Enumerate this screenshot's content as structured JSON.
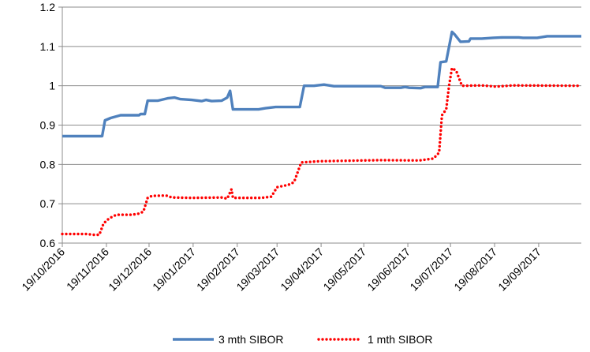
{
  "chart_data": {
    "type": "line",
    "title": "",
    "xlabel": "",
    "ylabel": "",
    "x_ticks": [
      "19/10/2016",
      "19/11/2016",
      "19/12/2016",
      "19/01/2017",
      "19/02/2017",
      "19/03/2017",
      "19/04/2017",
      "19/05/2017",
      "19/06/2017",
      "19/07/2017",
      "19/08/2017",
      "19/09/2017"
    ],
    "ylim": [
      0.6,
      1.2
    ],
    "y_ticks": [
      "0.6",
      "0.7",
      "0.8",
      "0.9",
      "1",
      "1.1",
      "1.2"
    ],
    "grid": "horizontal",
    "legend_position": "bottom",
    "series": [
      {
        "name": "3 mth SIBOR",
        "color": "#4F81BD",
        "style": "solid",
        "points": [
          [
            "2016-10-19",
            0.872
          ],
          [
            "2016-11-16",
            0.872
          ],
          [
            "2016-11-18",
            0.912
          ],
          [
            "2016-11-22",
            0.918
          ],
          [
            "2016-11-29",
            0.925
          ],
          [
            "2016-12-12",
            0.925
          ],
          [
            "2016-12-13",
            0.928
          ],
          [
            "2016-12-16",
            0.928
          ],
          [
            "2016-12-18",
            0.962
          ],
          [
            "2016-12-25",
            0.962
          ],
          [
            "2017-01-01",
            0.968
          ],
          [
            "2017-01-06",
            0.97
          ],
          [
            "2017-01-10",
            0.966
          ],
          [
            "2017-01-18",
            0.964
          ],
          [
            "2017-01-25",
            0.961
          ],
          [
            "2017-01-28",
            0.964
          ],
          [
            "2017-02-01",
            0.961
          ],
          [
            "2017-02-08",
            0.962
          ],
          [
            "2017-02-12",
            0.97
          ],
          [
            "2017-02-14",
            0.987
          ],
          [
            "2017-02-16",
            0.94
          ],
          [
            "2017-03-06",
            0.94
          ],
          [
            "2017-03-11",
            0.943
          ],
          [
            "2017-03-18",
            0.946
          ],
          [
            "2017-04-04",
            0.946
          ],
          [
            "2017-04-07",
            1.0
          ],
          [
            "2017-04-14",
            1.0
          ],
          [
            "2017-04-21",
            1.003
          ],
          [
            "2017-04-28",
            0.999
          ],
          [
            "2017-05-31",
            0.999
          ],
          [
            "2017-06-03",
            0.995
          ],
          [
            "2017-06-14",
            0.995
          ],
          [
            "2017-06-17",
            0.997
          ],
          [
            "2017-06-20",
            0.995
          ],
          [
            "2017-06-28",
            0.994
          ],
          [
            "2017-07-01",
            0.997
          ],
          [
            "2017-07-10",
            0.997
          ],
          [
            "2017-07-12",
            1.06
          ],
          [
            "2017-07-16",
            1.062
          ],
          [
            "2017-07-20",
            1.137
          ],
          [
            "2017-07-22",
            1.13
          ],
          [
            "2017-07-26",
            1.112
          ],
          [
            "2017-08-01",
            1.113
          ],
          [
            "2017-08-02",
            1.12
          ],
          [
            "2017-08-10",
            1.12
          ],
          [
            "2017-08-18",
            1.122
          ],
          [
            "2017-08-25",
            1.123
          ],
          [
            "2017-09-05",
            1.123
          ],
          [
            "2017-09-08",
            1.122
          ],
          [
            "2017-09-18",
            1.122
          ],
          [
            "2017-09-25",
            1.126
          ],
          [
            "2017-10-19",
            1.126
          ]
        ]
      },
      {
        "name": "1 mth SIBOR",
        "color": "#FF0000",
        "style": "dotted",
        "points": [
          [
            "2016-10-19",
            0.623
          ],
          [
            "2016-11-05",
            0.623
          ],
          [
            "2016-11-10",
            0.621
          ],
          [
            "2016-11-14",
            0.621
          ],
          [
            "2016-11-17",
            0.65
          ],
          [
            "2016-11-21",
            0.663
          ],
          [
            "2016-11-26",
            0.672
          ],
          [
            "2016-12-07",
            0.672
          ],
          [
            "2016-12-12",
            0.675
          ],
          [
            "2016-12-15",
            0.68
          ],
          [
            "2016-12-18",
            0.715
          ],
          [
            "2016-12-21",
            0.72
          ],
          [
            "2016-12-31",
            0.721
          ],
          [
            "2017-01-04",
            0.716
          ],
          [
            "2017-01-18",
            0.715
          ],
          [
            "2017-02-08",
            0.716
          ],
          [
            "2017-02-12",
            0.713
          ],
          [
            "2017-02-15",
            0.737
          ],
          [
            "2017-02-16",
            0.715
          ],
          [
            "2017-03-08",
            0.715
          ],
          [
            "2017-03-15",
            0.718
          ],
          [
            "2017-03-19",
            0.742
          ],
          [
            "2017-03-27",
            0.748
          ],
          [
            "2017-03-31",
            0.755
          ],
          [
            "2017-04-05",
            0.805
          ],
          [
            "2017-04-18",
            0.808
          ],
          [
            "2017-05-31",
            0.811
          ],
          [
            "2017-06-27",
            0.81
          ],
          [
            "2017-07-07",
            0.815
          ],
          [
            "2017-07-11",
            0.83
          ],
          [
            "2017-07-13",
            0.925
          ],
          [
            "2017-07-16",
            0.94
          ],
          [
            "2017-07-18",
            1.0
          ],
          [
            "2017-07-20",
            1.045
          ],
          [
            "2017-07-23",
            1.038
          ],
          [
            "2017-07-27",
            1.0
          ],
          [
            "2017-08-10",
            1.001
          ],
          [
            "2017-08-20",
            0.998
          ],
          [
            "2017-09-01",
            1.001
          ],
          [
            "2017-10-19",
            1.0
          ]
        ]
      }
    ]
  }
}
